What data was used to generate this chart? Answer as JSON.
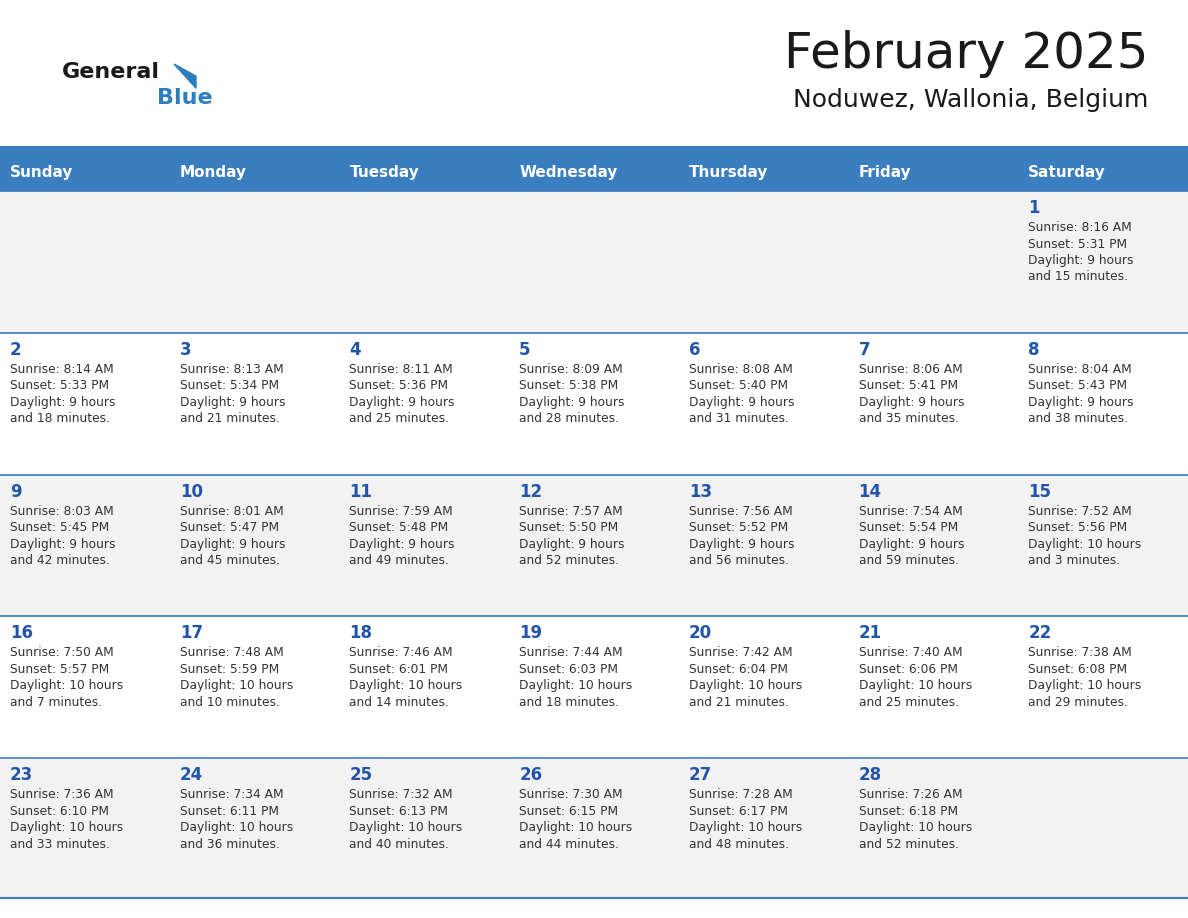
{
  "title": "February 2025",
  "subtitle": "Noduwez, Wallonia, Belgium",
  "header_bg": "#3a7ebf",
  "header_text": "#ffffff",
  "row_bg_odd": "#f2f2f2",
  "row_bg_even": "#ffffff",
  "border_color": "#3a7ebf",
  "day_headers": [
    "Sunday",
    "Monday",
    "Tuesday",
    "Wednesday",
    "Thursday",
    "Friday",
    "Saturday"
  ],
  "title_color": "#1a1a1a",
  "subtitle_color": "#1a1a1a",
  "day_number_color": "#2255aa",
  "cell_text_color": "#333333",
  "calendar": [
    [
      null,
      null,
      null,
      null,
      null,
      null,
      {
        "day": "1",
        "sunrise": "8:16 AM",
        "sunset": "5:31 PM",
        "daylight": "9 hours",
        "daylight2": "and 15 minutes."
      }
    ],
    [
      {
        "day": "2",
        "sunrise": "8:14 AM",
        "sunset": "5:33 PM",
        "daylight": "9 hours",
        "daylight2": "and 18 minutes."
      },
      {
        "day": "3",
        "sunrise": "8:13 AM",
        "sunset": "5:34 PM",
        "daylight": "9 hours",
        "daylight2": "and 21 minutes."
      },
      {
        "day": "4",
        "sunrise": "8:11 AM",
        "sunset": "5:36 PM",
        "daylight": "9 hours",
        "daylight2": "and 25 minutes."
      },
      {
        "day": "5",
        "sunrise": "8:09 AM",
        "sunset": "5:38 PM",
        "daylight": "9 hours",
        "daylight2": "and 28 minutes."
      },
      {
        "day": "6",
        "sunrise": "8:08 AM",
        "sunset": "5:40 PM",
        "daylight": "9 hours",
        "daylight2": "and 31 minutes."
      },
      {
        "day": "7",
        "sunrise": "8:06 AM",
        "sunset": "5:41 PM",
        "daylight": "9 hours",
        "daylight2": "and 35 minutes."
      },
      {
        "day": "8",
        "sunrise": "8:04 AM",
        "sunset": "5:43 PM",
        "daylight": "9 hours",
        "daylight2": "and 38 minutes."
      }
    ],
    [
      {
        "day": "9",
        "sunrise": "8:03 AM",
        "sunset": "5:45 PM",
        "daylight": "9 hours",
        "daylight2": "and 42 minutes."
      },
      {
        "day": "10",
        "sunrise": "8:01 AM",
        "sunset": "5:47 PM",
        "daylight": "9 hours",
        "daylight2": "and 45 minutes."
      },
      {
        "day": "11",
        "sunrise": "7:59 AM",
        "sunset": "5:48 PM",
        "daylight": "9 hours",
        "daylight2": "and 49 minutes."
      },
      {
        "day": "12",
        "sunrise": "7:57 AM",
        "sunset": "5:50 PM",
        "daylight": "9 hours",
        "daylight2": "and 52 minutes."
      },
      {
        "day": "13",
        "sunrise": "7:56 AM",
        "sunset": "5:52 PM",
        "daylight": "9 hours",
        "daylight2": "and 56 minutes."
      },
      {
        "day": "14",
        "sunrise": "7:54 AM",
        "sunset": "5:54 PM",
        "daylight": "9 hours",
        "daylight2": "and 59 minutes."
      },
      {
        "day": "15",
        "sunrise": "7:52 AM",
        "sunset": "5:56 PM",
        "daylight": "10 hours",
        "daylight2": "and 3 minutes."
      }
    ],
    [
      {
        "day": "16",
        "sunrise": "7:50 AM",
        "sunset": "5:57 PM",
        "daylight": "10 hours",
        "daylight2": "and 7 minutes."
      },
      {
        "day": "17",
        "sunrise": "7:48 AM",
        "sunset": "5:59 PM",
        "daylight": "10 hours",
        "daylight2": "and 10 minutes."
      },
      {
        "day": "18",
        "sunrise": "7:46 AM",
        "sunset": "6:01 PM",
        "daylight": "10 hours",
        "daylight2": "and 14 minutes."
      },
      {
        "day": "19",
        "sunrise": "7:44 AM",
        "sunset": "6:03 PM",
        "daylight": "10 hours",
        "daylight2": "and 18 minutes."
      },
      {
        "day": "20",
        "sunrise": "7:42 AM",
        "sunset": "6:04 PM",
        "daylight": "10 hours",
        "daylight2": "and 21 minutes."
      },
      {
        "day": "21",
        "sunrise": "7:40 AM",
        "sunset": "6:06 PM",
        "daylight": "10 hours",
        "daylight2": "and 25 minutes."
      },
      {
        "day": "22",
        "sunrise": "7:38 AM",
        "sunset": "6:08 PM",
        "daylight": "10 hours",
        "daylight2": "and 29 minutes."
      }
    ],
    [
      {
        "day": "23",
        "sunrise": "7:36 AM",
        "sunset": "6:10 PM",
        "daylight": "10 hours",
        "daylight2": "and 33 minutes."
      },
      {
        "day": "24",
        "sunrise": "7:34 AM",
        "sunset": "6:11 PM",
        "daylight": "10 hours",
        "daylight2": "and 36 minutes."
      },
      {
        "day": "25",
        "sunrise": "7:32 AM",
        "sunset": "6:13 PM",
        "daylight": "10 hours",
        "daylight2": "and 40 minutes."
      },
      {
        "day": "26",
        "sunrise": "7:30 AM",
        "sunset": "6:15 PM",
        "daylight": "10 hours",
        "daylight2": "and 44 minutes."
      },
      {
        "day": "27",
        "sunrise": "7:28 AM",
        "sunset": "6:17 PM",
        "daylight": "10 hours",
        "daylight2": "and 48 minutes."
      },
      {
        "day": "28",
        "sunrise": "7:26 AM",
        "sunset": "6:18 PM",
        "daylight": "10 hours",
        "daylight2": "and 52 minutes."
      },
      null
    ]
  ]
}
